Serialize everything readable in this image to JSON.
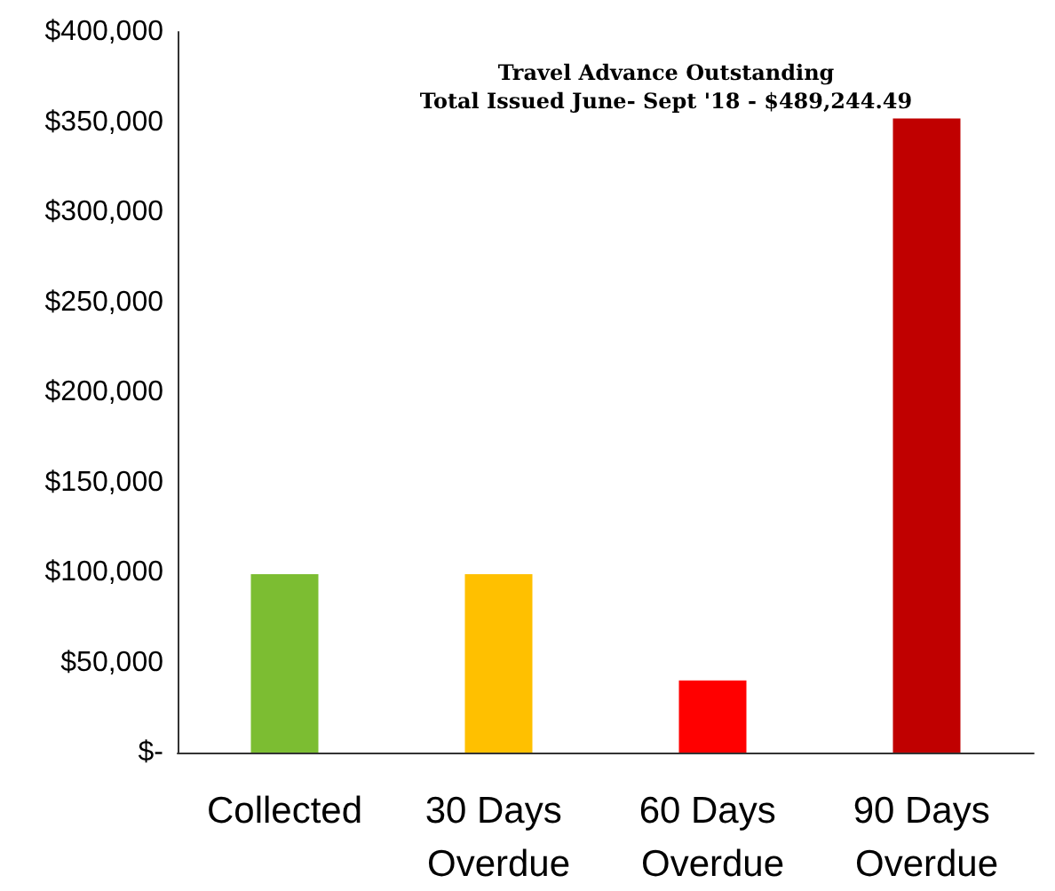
{
  "chart_data": {
    "type": "bar",
    "title": "Travel Advance Outstanding",
    "subtitle": "Total Issued June- Sept '18 - $489,244.49",
    "categories": [
      "Collected",
      "30 Days Overdue",
      "60 Days Overdue",
      "90 Days Overdue"
    ],
    "values": [
      99000,
      99000,
      40000,
      352000
    ],
    "colors": [
      "#7cbd32",
      "#ffc000",
      "#ff0000",
      "#c00000"
    ],
    "ylim": [
      0,
      400000
    ],
    "yticks": [
      {
        "value": 0,
        "label": "$-"
      },
      {
        "value": 50000,
        "label": "$50,000"
      },
      {
        "value": 100000,
        "label": "$100,000"
      },
      {
        "value": 150000,
        "label": "$150,000"
      },
      {
        "value": 200000,
        "label": "$200,000"
      },
      {
        "value": 250000,
        "label": "$250,000"
      },
      {
        "value": 300000,
        "label": "$300,000"
      },
      {
        "value": 350000,
        "label": "$350,000"
      },
      {
        "value": 400000,
        "label": "$400,000"
      }
    ],
    "grid": false
  }
}
